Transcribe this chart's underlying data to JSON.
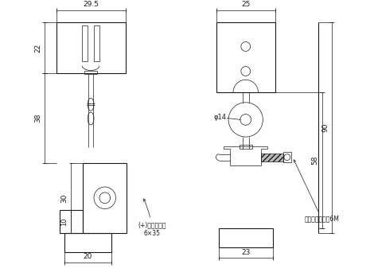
{
  "bg_color": "#ffffff",
  "line_color": "#1a1a1a",
  "fig_width": 4.7,
  "fig_height": 3.52,
  "annotation_nabe": "(+)ナベ小ネジ\n6×35",
  "annotation_nylon": "ナイロンナット6M",
  "dim_29_5": "29.5",
  "dim_22": "22",
  "dim_38": "38",
  "dim_30": "30",
  "dim_10": "10",
  "dim_20": "20",
  "dim_25": "25",
  "dim_58": "58",
  "dim_90": "90",
  "dim_23": "23",
  "dim_phi14": "φ14"
}
